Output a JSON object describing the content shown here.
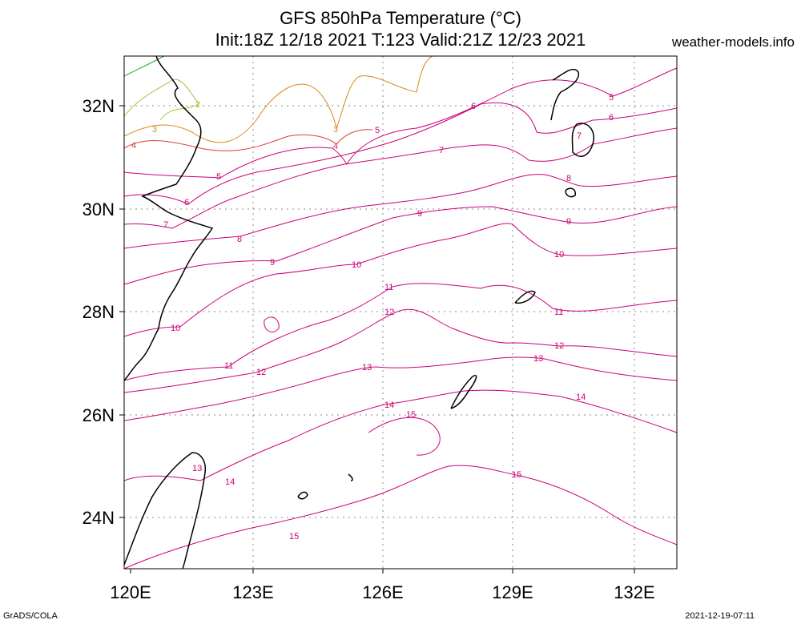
{
  "header": {
    "title_line1": "GFS 850hPa Temperature (°C)",
    "title_line2": "Init:18Z 12/18 2021 T:123 Valid:21Z 12/23 2021",
    "source": "weather-models.info"
  },
  "footer": {
    "left": "GrADS/COLA",
    "right": "2021-12-19-07:11"
  },
  "axes": {
    "lon_ticks": [
      "120E",
      "123E",
      "126E",
      "129E",
      "132E"
    ],
    "lat_ticks": [
      "32N",
      "30N",
      "28N",
      "26N",
      "24N"
    ],
    "lon_range": [
      120,
      133
    ],
    "lat_range": [
      23,
      33
    ],
    "grid": true
  },
  "contour_labels": [
    "2",
    "3",
    "4",
    "5",
    "6",
    "7",
    "8",
    "9",
    "10",
    "11",
    "12",
    "13",
    "14",
    "15"
  ],
  "colors": {
    "warm": "#cc0077",
    "mid": "#d8403c",
    "cool": "#d98a1a",
    "cold": "#9cc93a",
    "coldest": "#22aa22",
    "coast": "#000000",
    "grid": "#888888"
  }
}
